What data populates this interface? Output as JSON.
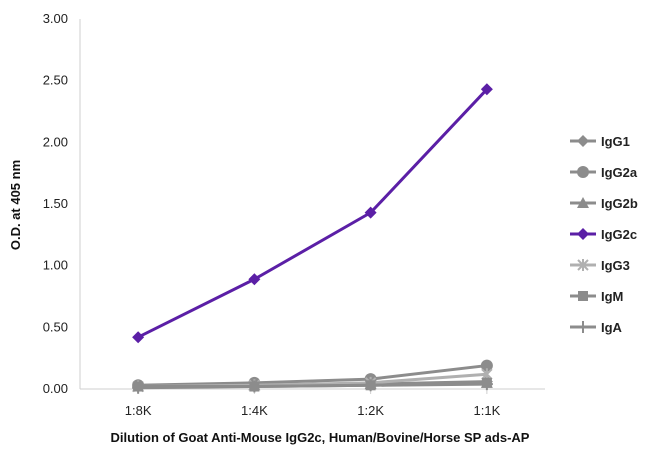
{
  "chart_data": {
    "type": "line",
    "categories": [
      "1:8K",
      "1:4K",
      "1:2K",
      "1:1K"
    ],
    "ylabel": "O.D. at 405 nm",
    "xlabel": "Dilution of Goat Anti-Mouse IgG2c, Human/Bovine/Horse SP ads-AP",
    "ylim": [
      0,
      3
    ],
    "yticks": [
      "0.00",
      "0.50",
      "1.00",
      "1.50",
      "2.00",
      "2.50",
      "3.00"
    ],
    "grid": false,
    "legend_position": "right",
    "series": [
      {
        "name": "IgG1",
        "values": [
          0.02,
          0.03,
          0.04,
          0.06
        ],
        "color": "#8c8c8c",
        "marker": "diamond"
      },
      {
        "name": "IgG2a",
        "values": [
          0.03,
          0.05,
          0.08,
          0.19
        ],
        "color": "#8c8c8c",
        "marker": "circle"
      },
      {
        "name": "IgG2b",
        "values": [
          0.02,
          0.03,
          0.04,
          0.05
        ],
        "color": "#8c8c8c",
        "marker": "triangle"
      },
      {
        "name": "IgG2c",
        "values": [
          0.42,
          0.89,
          1.43,
          2.43
        ],
        "color": "#5b1fa6",
        "marker": "diamond"
      },
      {
        "name": "IgG3",
        "values": [
          0.02,
          0.03,
          0.05,
          0.12
        ],
        "color": "#b0b0b0",
        "marker": "star"
      },
      {
        "name": "IgM",
        "values": [
          0.02,
          0.02,
          0.03,
          0.05
        ],
        "color": "#8c8c8c",
        "marker": "square"
      },
      {
        "name": "IgA",
        "values": [
          0.01,
          0.02,
          0.03,
          0.04
        ],
        "color": "#8c8c8c",
        "marker": "plus"
      }
    ]
  }
}
